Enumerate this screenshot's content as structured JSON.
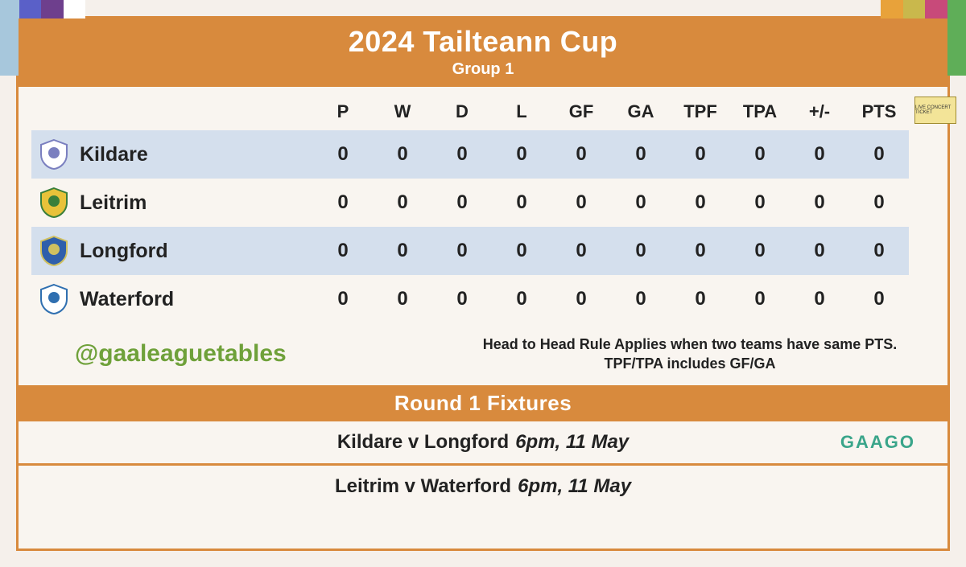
{
  "theme": {
    "accent": "#d88a3d",
    "highlight_row_bg": "#d4dfed",
    "card_bg": "#f9f5f0",
    "handle_color": "#6fa13a",
    "broadcast_color": "#3aa58a"
  },
  "corner_colors": {
    "left": [
      "#a7c7dc",
      "#5a60c8",
      "#6e3f8d",
      "#ffffff"
    ],
    "right": [
      "#e8a23a",
      "#c9b84c",
      "#c84a7a",
      "#5fae58"
    ]
  },
  "header": {
    "title": "2024 Tailteann Cup",
    "subtitle": "Group 1"
  },
  "standings": {
    "columns": [
      "P",
      "W",
      "D",
      "L",
      "GF",
      "GA",
      "TPF",
      "TPA",
      "+/-",
      "PTS"
    ],
    "rows": [
      {
        "team": "Kildare",
        "highlight": true,
        "crest_colors": [
          "#ffffff",
          "#7a7fbf"
        ],
        "values": [
          "0",
          "0",
          "0",
          "0",
          "0",
          "0",
          "0",
          "0",
          "0",
          "0"
        ]
      },
      {
        "team": "Leitrim",
        "highlight": false,
        "crest_colors": [
          "#e8c23a",
          "#3a7f3a"
        ],
        "values": [
          "0",
          "0",
          "0",
          "0",
          "0",
          "0",
          "0",
          "0",
          "0",
          "0"
        ]
      },
      {
        "team": "Longford",
        "highlight": true,
        "crest_colors": [
          "#2f5fab",
          "#d0c060"
        ],
        "values": [
          "0",
          "0",
          "0",
          "0",
          "0",
          "0",
          "0",
          "0",
          "0",
          "0"
        ]
      },
      {
        "team": "Waterford",
        "highlight": false,
        "crest_colors": [
          "#ffffff",
          "#2f6fb0"
        ],
        "values": [
          "0",
          "0",
          "0",
          "0",
          "0",
          "0",
          "0",
          "0",
          "0",
          "0"
        ]
      }
    ]
  },
  "handle": "@gaaleaguetables",
  "rule_note": "Head to Head Rule Applies when two teams have same PTS. TPF/TPA includes GF/GA",
  "fixtures": {
    "title": "Round 1 Fixtures",
    "items": [
      {
        "teams": "Kildare v Longford",
        "when": "6pm, 11 May",
        "broadcast": "GAAGO"
      },
      {
        "teams": "Leitrim v Waterford",
        "when": "6pm, 11 May",
        "broadcast": ""
      }
    ]
  },
  "ticket_label": "LIVE CONCERT TICKET"
}
